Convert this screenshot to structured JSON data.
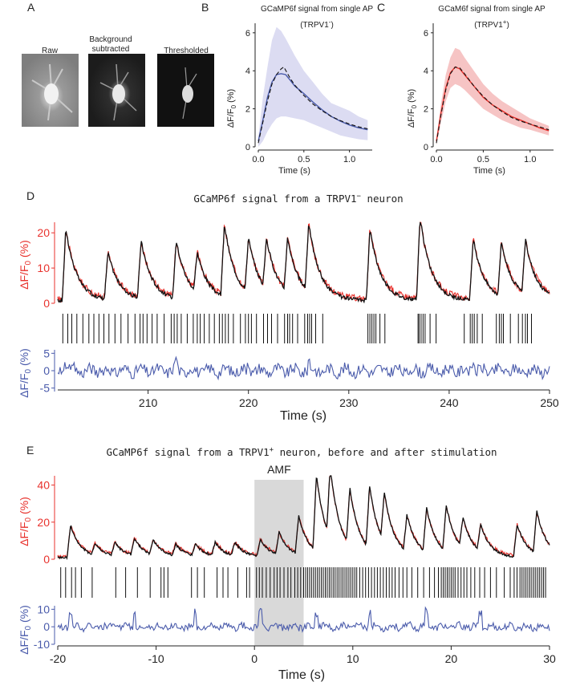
{
  "panels": {
    "A": {
      "letter": "A",
      "images": [
        {
          "label": "Raw"
        },
        {
          "label_line1": "Background",
          "label_line2": "subtracted"
        },
        {
          "label": "Thresholded"
        }
      ]
    },
    "B": {
      "letter": "B",
      "title": "GCaMP6f signal from single AP",
      "subtitle": "(TRPV1",
      "subtitle_sup": "-",
      "subtitle_end": ")",
      "ylabel": "ΔF/F",
      "ylabel_sub": "0",
      "ylabel_end": " (%)",
      "xlabel": "Time (s)"
    },
    "C": {
      "letter": "C",
      "title": "GCaM6f signal from single AP",
      "subtitle": "(TRPV1",
      "subtitle_sup": "+",
      "subtitle_end": ")",
      "ylabel": "ΔF/F",
      "ylabel_sub": "0",
      "ylabel_end": " (%)",
      "xlabel": "Time (s)"
    },
    "D": {
      "letter": "D",
      "title": "GCaMP6f signal from a TRPV1",
      "title_sup": "−",
      "title_end": " neuron",
      "ylabel_top": "ΔF/F",
      "ylabel_sub": "0",
      "ylabel_end": " (%)",
      "ylabel_bottom": "ΔF/F",
      "xlabel": "Time (s)"
    },
    "E": {
      "letter": "E",
      "title": "GCaMP6f signal from a TRPV1",
      "title_sup": "+",
      "title_end": " neuron, before and after stimulation",
      "stim_label": "AMF",
      "ylabel_top": "ΔF/F",
      "ylabel_sub": "0",
      "ylabel_end": " (%)",
      "ylabel_bottom": "ΔF/F",
      "xlabel": "Time (s)"
    }
  },
  "colors": {
    "red": "#e8322d",
    "blue": "#4a5bab",
    "black": "#111111",
    "lavender": "#dcdcf2",
    "pink": "#f6c4c4",
    "stim": "#d9d9d9"
  },
  "chart_data": [
    {
      "panel": "B",
      "type": "line",
      "title": "GCaMP6f signal from single AP (TRPV1-)",
      "xlabel": "Time (s)",
      "ylabel": "ΔF/F0 (%)",
      "xlim": [
        0,
        1.25
      ],
      "ylim": [
        0,
        6.5
      ],
      "xticks": [
        "0.0",
        "0.5",
        "1.0"
      ],
      "yticks": [
        "0",
        "2",
        "4",
        "6"
      ],
      "series": [
        {
          "style": "solid blue",
          "x": [
            0,
            0.05,
            0.1,
            0.15,
            0.2,
            0.25,
            0.3,
            0.35,
            0.4,
            0.5,
            0.6,
            0.7,
            0.8,
            0.9,
            1.0,
            1.1,
            1.2
          ],
          "y": [
            0.3,
            1.4,
            2.6,
            3.4,
            3.8,
            3.85,
            3.8,
            3.5,
            3.2,
            2.8,
            2.35,
            1.95,
            1.6,
            1.35,
            1.15,
            1.0,
            0.9
          ]
        },
        {
          "style": "dashed black",
          "x": [
            0,
            0.05,
            0.1,
            0.15,
            0.2,
            0.25,
            0.28,
            0.35,
            0.4,
            0.5,
            0.6,
            0.7,
            0.8,
            0.9,
            1.0,
            1.1,
            1.2
          ],
          "y": [
            0.2,
            1.3,
            2.4,
            3.3,
            3.8,
            4.1,
            4.2,
            3.6,
            3.25,
            2.7,
            2.25,
            1.9,
            1.6,
            1.38,
            1.2,
            1.05,
            0.95
          ]
        },
        {
          "style": "lavender band upper",
          "x": [
            0,
            0.05,
            0.1,
            0.15,
            0.2,
            0.25,
            0.3,
            0.4,
            0.5,
            0.6,
            0.7,
            0.8,
            0.9,
            1.0,
            1.1,
            1.2
          ],
          "y": [
            0.5,
            2.6,
            4.2,
            5.6,
            6.3,
            6.1,
            5.7,
            4.8,
            4.0,
            3.4,
            2.8,
            2.3,
            2.1,
            1.9,
            1.6,
            1.4
          ]
        },
        {
          "style": "lavender band lower",
          "x": [
            0,
            0.05,
            0.1,
            0.15,
            0.2,
            0.25,
            0.3,
            0.4,
            0.5,
            0.6,
            0.7,
            0.8,
            0.9,
            1.0,
            1.1,
            1.2
          ],
          "y": [
            0.0,
            0.3,
            0.8,
            1.2,
            1.5,
            1.6,
            1.6,
            1.5,
            1.4,
            1.2,
            1.0,
            0.8,
            0.6,
            0.5,
            0.4,
            0.35
          ]
        }
      ]
    },
    {
      "panel": "C",
      "type": "line",
      "title": "GCaM6f signal from single AP (TRPV1+)",
      "xlabel": "Time (s)",
      "ylabel": "ΔF/F0 (%)",
      "xlim": [
        0,
        1.25
      ],
      "ylim": [
        0,
        6.5
      ],
      "xticks": [
        "0.0",
        "0.5",
        "1.0"
      ],
      "yticks": [
        "0",
        "2",
        "4",
        "6"
      ],
      "series": [
        {
          "style": "solid red",
          "x": [
            0,
            0.05,
            0.1,
            0.15,
            0.2,
            0.25,
            0.3,
            0.4,
            0.5,
            0.6,
            0.7,
            0.8,
            0.9,
            1.0,
            1.1,
            1.2
          ],
          "y": [
            0.3,
            1.8,
            3.1,
            3.9,
            4.2,
            4.1,
            3.8,
            3.2,
            2.6,
            2.2,
            1.9,
            1.6,
            1.4,
            1.2,
            1.0,
            0.85
          ]
        },
        {
          "style": "dashed black",
          "x": [
            0,
            0.05,
            0.1,
            0.15,
            0.2,
            0.25,
            0.3,
            0.4,
            0.5,
            0.6,
            0.7,
            0.8,
            0.9,
            1.0,
            1.1,
            1.2
          ],
          "y": [
            0.2,
            1.7,
            3.0,
            3.85,
            4.2,
            4.15,
            3.85,
            3.2,
            2.65,
            2.2,
            1.85,
            1.55,
            1.35,
            1.2,
            1.05,
            0.9
          ]
        },
        {
          "style": "pink band upper",
          "x": [
            0,
            0.05,
            0.1,
            0.15,
            0.2,
            0.25,
            0.3,
            0.4,
            0.5,
            0.6,
            0.7,
            0.8,
            0.9,
            1.0,
            1.1,
            1.2
          ],
          "y": [
            0.4,
            2.3,
            3.8,
            4.7,
            5.2,
            5.1,
            4.7,
            4.0,
            3.3,
            2.8,
            2.4,
            2.1,
            1.8,
            1.5,
            1.3,
            1.1
          ]
        },
        {
          "style": "pink band lower",
          "x": [
            0,
            0.05,
            0.1,
            0.15,
            0.2,
            0.25,
            0.3,
            0.4,
            0.5,
            0.6,
            0.7,
            0.8,
            0.9,
            1.0,
            1.1,
            1.2
          ],
          "y": [
            0.1,
            1.3,
            2.4,
            3.1,
            3.3,
            3.2,
            3.0,
            2.5,
            2.0,
            1.7,
            1.4,
            1.2,
            1.0,
            0.9,
            0.75,
            0.6
          ]
        }
      ]
    },
    {
      "panel": "D",
      "type": "line",
      "title": "GCaMP6f signal from a TRPV1− neuron",
      "xlabel": "Time (s)",
      "xlim": [
        201,
        250
      ],
      "xticks": [
        "210",
        "220",
        "230",
        "240",
        "250"
      ],
      "top": {
        "ylim": [
          0,
          23
        ],
        "yticks": [
          "0",
          "10",
          "20"
        ],
        "peaks": [
          201.8,
          206.0,
          209.3,
          212.8,
          214.9,
          217.6,
          220.0,
          221.8,
          223.9,
          226.0,
          232.1,
          237.1,
          242.4,
          245.2,
          247.6
        ],
        "amplitudes": [
          20,
          13,
          16,
          16,
          11,
          20,
          15,
          14,
          15,
          19,
          20,
          23,
          17,
          15,
          15
        ]
      },
      "spikes": [
        201.5,
        202,
        202.4,
        202.9,
        203.5,
        204.1,
        204.6,
        205.1,
        205.6,
        206.1,
        206.7,
        207.3,
        208.0,
        208.7,
        209.2,
        209.5,
        209.9,
        210.4,
        210.9,
        211.6,
        212.3,
        212.6,
        212.9,
        213.3,
        213.9,
        214.5,
        214.9,
        215.2,
        215.6,
        216.1,
        216.6,
        217.1,
        217.4,
        217.7,
        218.0,
        218.5,
        219.2,
        219.7,
        220.0,
        220.3,
        220.8,
        221.5,
        221.9,
        222.3,
        222.9,
        223.6,
        223.9,
        224.1,
        224.4,
        224.9,
        225.6,
        225.9,
        226.1,
        226.3,
        226.7,
        227.4,
        231.9,
        232.1,
        232.3,
        232.5,
        232.7,
        233.1,
        233.6,
        236.9,
        237.0,
        237.2,
        237.4,
        237.6,
        238.1,
        238.7,
        241.5,
        242.1,
        242.3,
        242.5,
        242.8,
        243.3,
        244.7,
        245.0,
        245.2,
        245.4,
        246.1,
        246.9,
        247.3,
        247.6,
        247.8,
        248.2
      ],
      "bottom": {
        "ylim": [
          -6,
          6
        ],
        "yticks": [
          "-5",
          "0",
          "5"
        ]
      }
    },
    {
      "panel": "E",
      "type": "line",
      "title": "GCaMP6f signal from a TRPV1+ neuron, before and after stimulation",
      "xlabel": "Time (s)",
      "xlim": [
        -20,
        30
      ],
      "xticks": [
        "-20",
        "-10",
        "0",
        "10",
        "20",
        "30"
      ],
      "stimulus": {
        "label": "AMF",
        "start": 0,
        "end": 5
      },
      "top": {
        "ylim": [
          0,
          45
        ],
        "yticks": [
          "0",
          "20",
          "40"
        ],
        "peaks": [
          -18.7,
          -16.2,
          -14.2,
          -12.2,
          -10.3,
          -8.0,
          -6.0,
          -4.0,
          -2.0,
          0.6,
          2.5,
          4.5,
          6.3,
          7.7,
          9.7,
          11.7,
          13.2,
          15.5,
          17.5,
          19.5,
          21.2,
          23.0,
          26.7,
          28.7
        ],
        "amplitudes": [
          17,
          6,
          7,
          9,
          8,
          6,
          6,
          7,
          7,
          9,
          12,
          20,
          40,
          37,
          30,
          33,
          26,
          19,
          23,
          24,
          16,
          14,
          17,
          22
        ]
      },
      "spikes": [
        -19.7,
        -19.2,
        -18.6,
        -18.2,
        -17.6,
        -16.5,
        -14.1,
        -13.1,
        -11.9,
        -10.6,
        -9.5,
        -9.2,
        -8.8,
        -6.4,
        -5.8,
        -5.1,
        -3.8,
        -3.2,
        -2.7,
        -1.7,
        -0.8,
        -0.5,
        0.2,
        0.5,
        0.8,
        1.2,
        1.6,
        2.0,
        2.3,
        2.6,
        3.0,
        3.4,
        3.7,
        4.1,
        4.4,
        4.7,
        5.0,
        5.2,
        5.4,
        5.6,
        5.8,
        6.0,
        6.2,
        6.4,
        6.6,
        6.8,
        7.0,
        7.2,
        7.4,
        7.6,
        7.8,
        8.0,
        8.2,
        8.4,
        8.6,
        8.8,
        9.0,
        9.2,
        9.4,
        9.6,
        9.8,
        10.0,
        10.2,
        10.4,
        10.7,
        11.0,
        11.3,
        11.6,
        11.9,
        12.2,
        12.5,
        12.8,
        13.1,
        13.4,
        13.7,
        14.0,
        14.3,
        14.7,
        15.1,
        15.5,
        16.0,
        16.6,
        17.2,
        17.8,
        18.3,
        18.7,
        19.0,
        19.2,
        19.4,
        19.6,
        19.8,
        20.0,
        20.2,
        20.4,
        20.7,
        21.0,
        21.3,
        21.6,
        22.0,
        22.4,
        22.9,
        23.4,
        24.0,
        24.6,
        25.4,
        26.0,
        26.4,
        26.7,
        27.0,
        27.2,
        27.4,
        27.6,
        27.8,
        28.0,
        28.2,
        28.4,
        28.6,
        28.8,
        29.0,
        29.2,
        29.4,
        29.6
      ],
      "bottom": {
        "ylim": [
          -10,
          12
        ],
        "yticks": [
          "-10",
          "0",
          "10"
        ]
      }
    }
  ]
}
